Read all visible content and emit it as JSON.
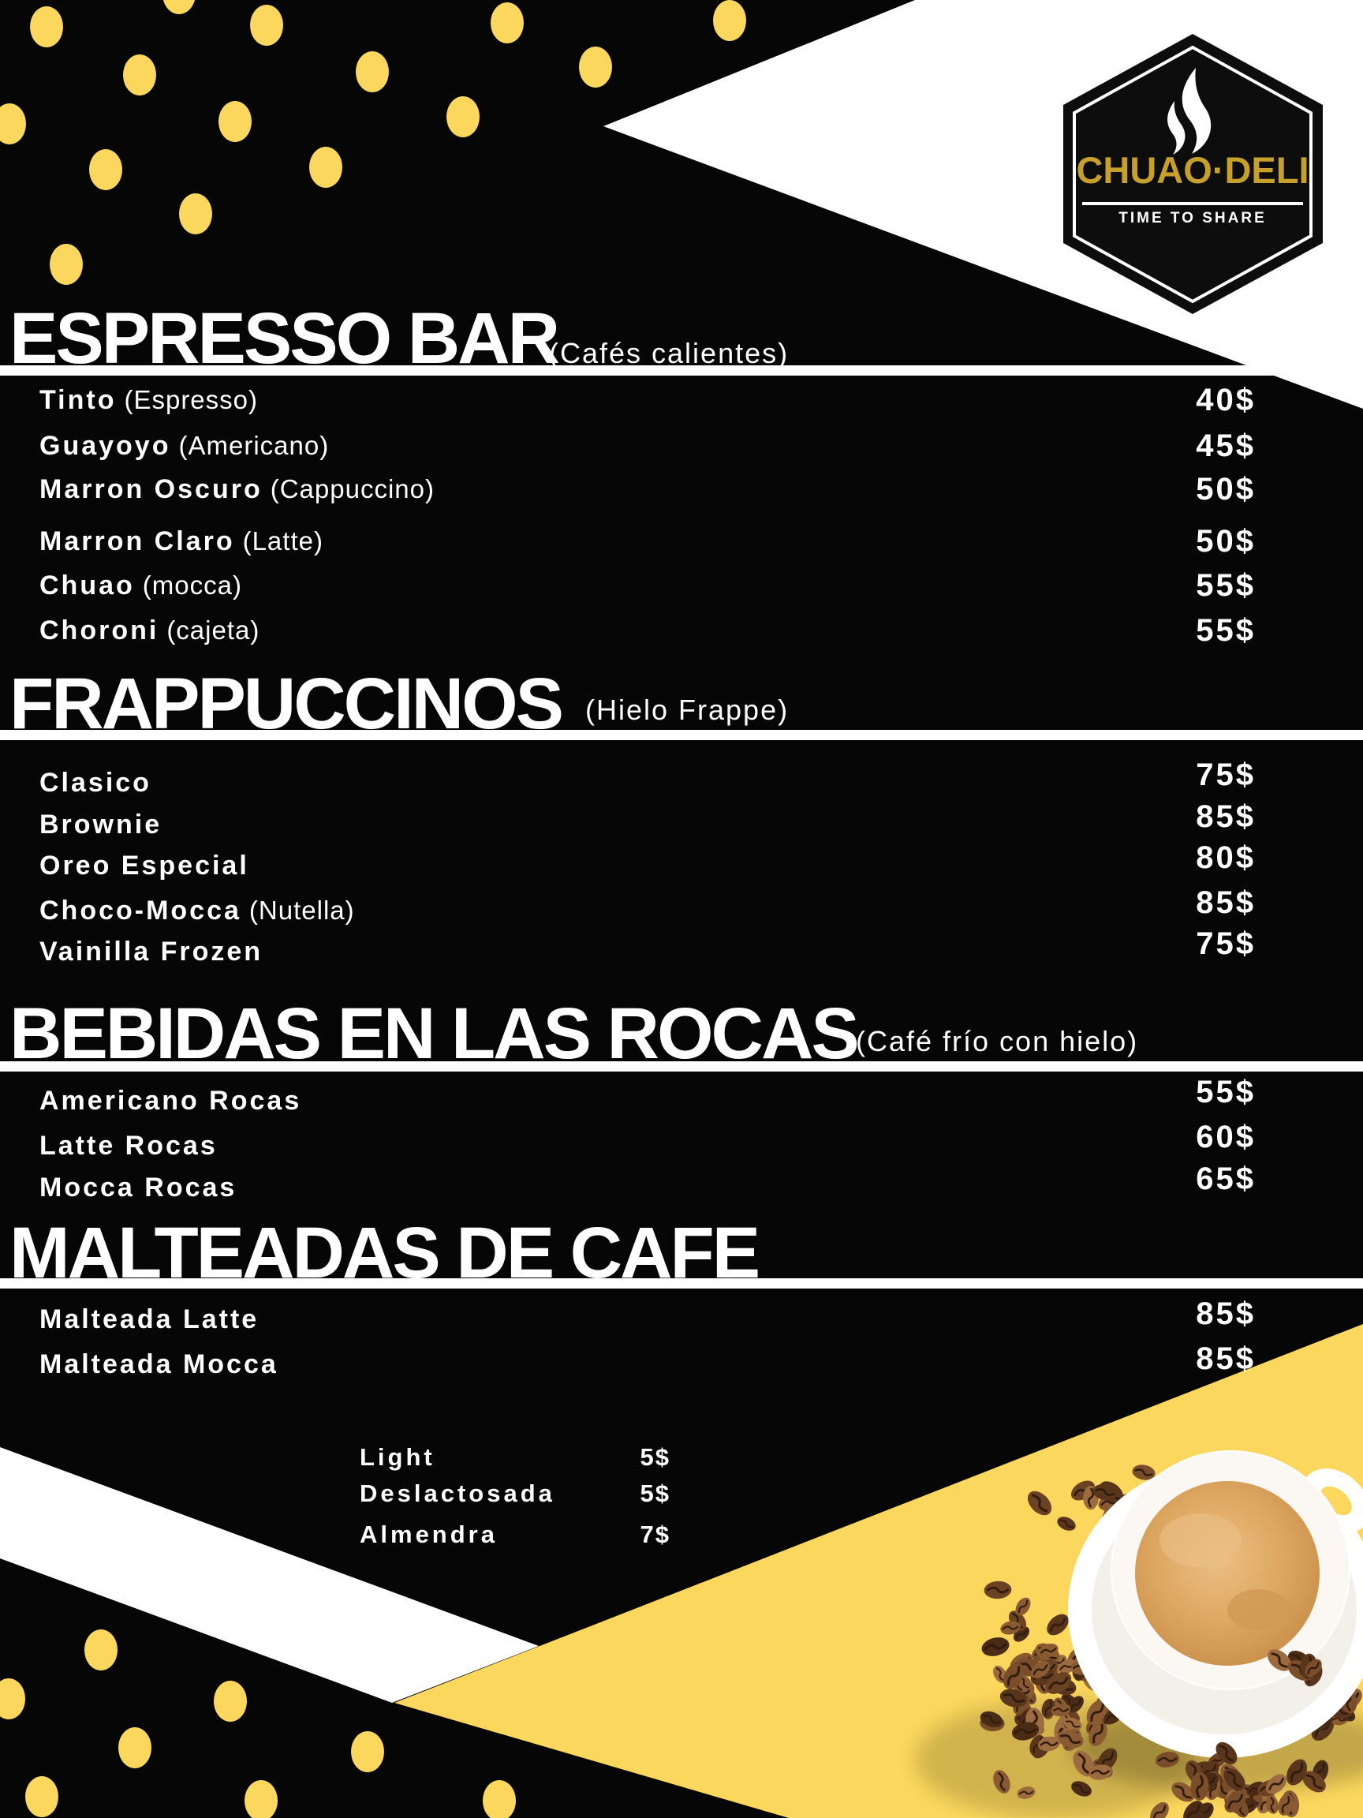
{
  "logo": {
    "brand": "CHUAO·DELI",
    "tagline": "TIME TO SHARE"
  },
  "sections": [
    {
      "title": "ESPRESSO BAR",
      "subtitle": "(Cafés calientes)",
      "items": [
        {
          "name": "Tinto",
          "note": "(Espresso)",
          "price": "40$"
        },
        {
          "name": "Guayoyo",
          "note": "(Americano)",
          "price": "45$"
        },
        {
          "name": "Marron Oscuro",
          "note": "(Cappuccino)",
          "price": "50$"
        },
        {
          "name": "Marron Claro",
          "note": "(Latte)",
          "price": "50$"
        },
        {
          "name": "Chuao",
          "note": "(mocca)",
          "price": "55$"
        },
        {
          "name": "Choroni",
          "note": "(cajeta)",
          "price": "55$"
        }
      ]
    },
    {
      "title": "FRAPPUCCINOS",
      "subtitle": "(Hielo Frappe)",
      "items": [
        {
          "name": "Clasico",
          "note": "",
          "price": "75$"
        },
        {
          "name": "Brownie",
          "note": "",
          "price": "85$"
        },
        {
          "name": "Oreo Especial",
          "note": "",
          "price": "80$"
        },
        {
          "name": "Choco-Mocca",
          "note": "(Nutella)",
          "price": "85$"
        },
        {
          "name": "Vainilla Frozen",
          "note": "",
          "price": "75$"
        }
      ]
    },
    {
      "title": "BEBIDAS EN LAS ROCAS",
      "subtitle": "(Café frío con hielo)",
      "items": [
        {
          "name": "Americano Rocas",
          "note": "",
          "price": "55$"
        },
        {
          "name": "Latte Rocas",
          "note": "",
          "price": "60$"
        },
        {
          "name": "Mocca Rocas",
          "note": "",
          "price": "65$"
        }
      ]
    },
    {
      "title": "MALTEADAS DE CAFE",
      "subtitle": "",
      "items": [
        {
          "name": "Malteada Latte",
          "note": "",
          "price": "85$"
        },
        {
          "name": "Malteada Mocca",
          "note": "",
          "price": "85$"
        }
      ]
    }
  ],
  "addons": [
    {
      "label": "Light",
      "price": "5$"
    },
    {
      "label": "Deslactosada",
      "price": "5$"
    },
    {
      "label": "Almendra",
      "price": "7$"
    }
  ],
  "colors": {
    "background": "#060606",
    "accent_yellow": "#FBD75D",
    "logo_gold": "#C7A02C",
    "text": "#FFFFFF"
  }
}
